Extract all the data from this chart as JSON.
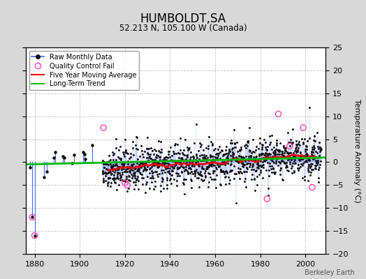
{
  "title": "HUMBOLDT,SA",
  "subtitle": "52.213 N, 105.100 W (Canada)",
  "ylabel": "Temperature Anomaly (°C)",
  "credit": "Berkeley Earth",
  "xlim": [
    1876,
    2009
  ],
  "ylim": [
    -20,
    25
  ],
  "yticks": [
    -20,
    -15,
    -10,
    -5,
    0,
    5,
    10,
    15,
    20,
    25
  ],
  "xticks": [
    1880,
    1900,
    1920,
    1940,
    1960,
    1980,
    2000
  ],
  "bg_color": "#d8d8d8",
  "plot_bg_color": "#ffffff",
  "grid_color": "#aaaaaa",
  "raw_line_color": "#4466ff",
  "raw_dot_color": "#111111",
  "qc_fail_color": "#ff44aa",
  "moving_avg_color": "#ee0000",
  "trend_color": "#00bb00",
  "seed": 12,
  "sparse_end_year": 1910,
  "dense_start_year": 1910,
  "end_year": 2007,
  "start_year": 1880
}
